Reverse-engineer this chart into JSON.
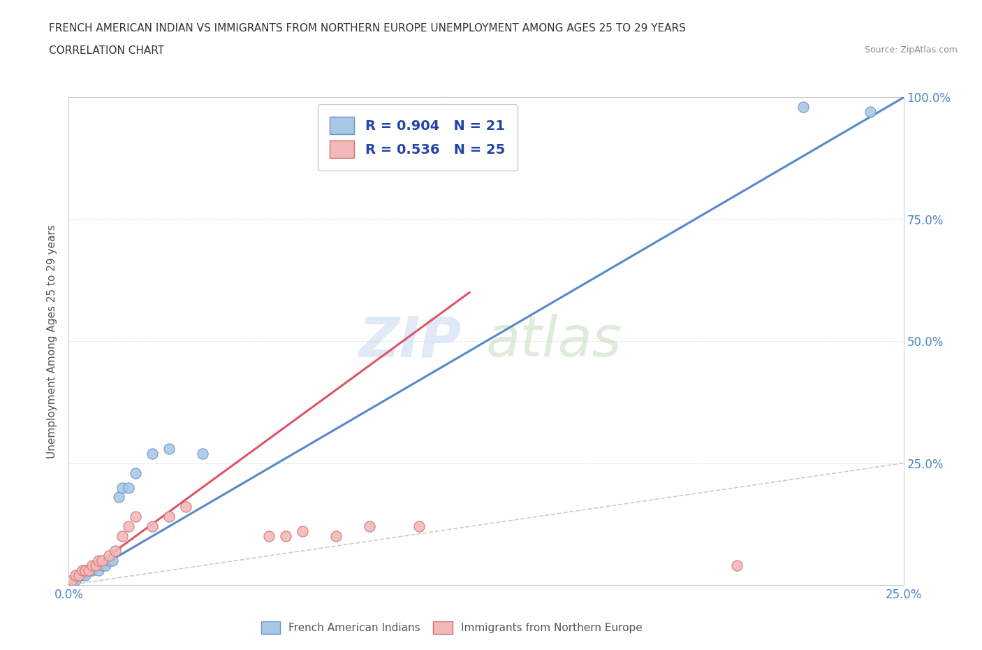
{
  "title_line1": "FRENCH AMERICAN INDIAN VS IMMIGRANTS FROM NORTHERN EUROPE UNEMPLOYMENT AMONG AGES 25 TO 29 YEARS",
  "title_line2": "CORRELATION CHART",
  "source": "Source: ZipAtlas.com",
  "xlabel": "",
  "ylabel": "Unemployment Among Ages 25 to 29 years",
  "xlim": [
    0.0,
    0.25
  ],
  "ylim": [
    0.0,
    1.0
  ],
  "x_ticks": [
    0.0,
    0.05,
    0.1,
    0.15,
    0.2,
    0.25
  ],
  "y_ticks": [
    0.0,
    0.25,
    0.5,
    0.75,
    1.0
  ],
  "blue_scatter_x": [
    0.002,
    0.003,
    0.004,
    0.005,
    0.006,
    0.007,
    0.008,
    0.009,
    0.01,
    0.011,
    0.012,
    0.013,
    0.015,
    0.016,
    0.018,
    0.02,
    0.025,
    0.03,
    0.04,
    0.22,
    0.24
  ],
  "blue_scatter_y": [
    0.01,
    0.02,
    0.02,
    0.02,
    0.03,
    0.03,
    0.04,
    0.03,
    0.04,
    0.04,
    0.05,
    0.05,
    0.18,
    0.2,
    0.2,
    0.23,
    0.27,
    0.28,
    0.27,
    0.98,
    0.97
  ],
  "pink_scatter_x": [
    0.001,
    0.002,
    0.003,
    0.004,
    0.005,
    0.006,
    0.007,
    0.008,
    0.009,
    0.01,
    0.012,
    0.014,
    0.016,
    0.018,
    0.02,
    0.025,
    0.03,
    0.035,
    0.06,
    0.065,
    0.07,
    0.08,
    0.09,
    0.105,
    0.2
  ],
  "pink_scatter_y": [
    0.01,
    0.02,
    0.02,
    0.03,
    0.03,
    0.03,
    0.04,
    0.04,
    0.05,
    0.05,
    0.06,
    0.07,
    0.1,
    0.12,
    0.14,
    0.12,
    0.14,
    0.16,
    0.1,
    0.1,
    0.11,
    0.1,
    0.12,
    0.12,
    0.04
  ],
  "blue_line_x": [
    0.0,
    0.25
  ],
  "blue_line_y": [
    0.0,
    1.0
  ],
  "pink_line_x": [
    0.0,
    0.12
  ],
  "pink_line_y": [
    0.0,
    0.6
  ],
  "diagonal_line_x": [
    0.0,
    0.25
  ],
  "diagonal_line_y": [
    0.0,
    0.25
  ],
  "blue_color": "#a8c8e8",
  "pink_color": "#f4b8b8",
  "blue_edge_color": "#7090c0",
  "pink_edge_color": "#d07070",
  "blue_line_color": "#5588cc",
  "pink_line_color": "#dd5566",
  "diagonal_color": "#cccccc",
  "legend_blue_r": "0.904",
  "legend_blue_n": "21",
  "legend_pink_r": "0.536",
  "legend_pink_n": "25",
  "watermark_zip": "ZIP",
  "watermark_atlas": "atlas",
  "background_color": "#ffffff",
  "grid_color": "#e8e8e8"
}
